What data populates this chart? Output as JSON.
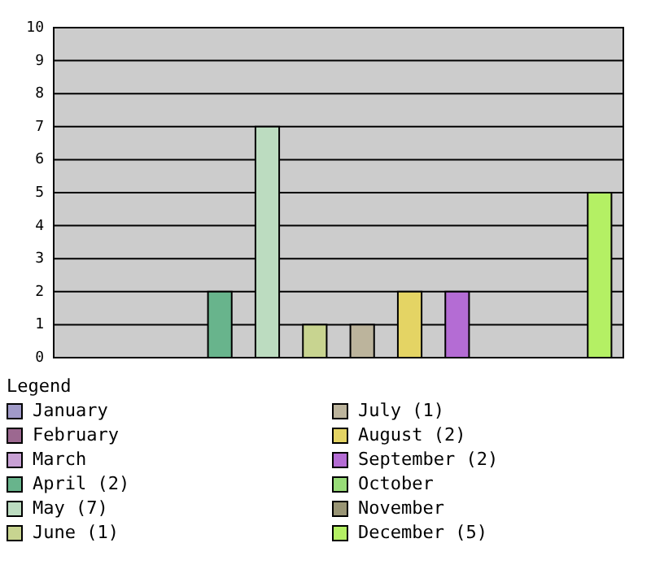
{
  "chart_data": {
    "type": "bar",
    "legend_title": "Legend",
    "categories": [
      null,
      null,
      null,
      null,
      null,
      null,
      null,
      null,
      null,
      null,
      null,
      null
    ],
    "series": [
      {
        "name": "January",
        "color": "#a09ac8",
        "values": [
          0,
          null,
          null,
          null,
          null,
          null,
          null,
          null,
          null,
          null,
          null,
          null
        ]
      },
      {
        "name": "February",
        "color": "#9c6890",
        "values": [
          null,
          0,
          null,
          null,
          null,
          null,
          null,
          null,
          null,
          null,
          null,
          null
        ]
      },
      {
        "name": "March",
        "color": "#c8a0d4",
        "values": [
          null,
          null,
          0,
          null,
          null,
          null,
          null,
          null,
          null,
          null,
          null,
          null
        ]
      },
      {
        "name": "April (2)",
        "color": "#68b48c",
        "values": [
          null,
          null,
          null,
          2,
          null,
          null,
          null,
          null,
          null,
          null,
          null,
          null
        ]
      },
      {
        "name": "May (7)",
        "color": "#bcdcc0",
        "values": [
          null,
          null,
          null,
          null,
          7,
          null,
          null,
          null,
          null,
          null,
          null,
          null
        ]
      },
      {
        "name": "June (1)",
        "color": "#c8d490",
        "values": [
          null,
          null,
          null,
          null,
          null,
          1,
          null,
          null,
          null,
          null,
          null,
          null
        ]
      },
      {
        "name": "July (1)",
        "color": "#bcb49c",
        "values": [
          null,
          null,
          null,
          null,
          null,
          null,
          1,
          null,
          null,
          null,
          null,
          null
        ]
      },
      {
        "name": "August (2)",
        "color": "#e4d464",
        "values": [
          null,
          null,
          null,
          null,
          null,
          null,
          null,
          2,
          null,
          null,
          null,
          null
        ]
      },
      {
        "name": "September (2)",
        "color": "#b46cd4",
        "values": [
          null,
          null,
          null,
          null,
          null,
          null,
          null,
          null,
          2,
          null,
          null,
          null
        ]
      },
      {
        "name": "October",
        "color": "#98dc78",
        "values": [
          null,
          null,
          null,
          null,
          null,
          null,
          null,
          null,
          null,
          0,
          null,
          null
        ]
      },
      {
        "name": "November",
        "color": "#989474",
        "values": [
          null,
          null,
          null,
          null,
          null,
          null,
          null,
          null,
          null,
          null,
          0,
          null
        ]
      },
      {
        "name": "December (5)",
        "color": "#b4f064",
        "values": [
          null,
          null,
          null,
          null,
          null,
          null,
          null,
          null,
          null,
          null,
          null,
          5
        ]
      }
    ],
    "ylim": [
      0,
      10
    ],
    "yticks": [
      0,
      1,
      2,
      3,
      4,
      5,
      6,
      7,
      8,
      9,
      10
    ],
    "grid": "y",
    "legend": "bottom",
    "tick_labels": "y"
  }
}
